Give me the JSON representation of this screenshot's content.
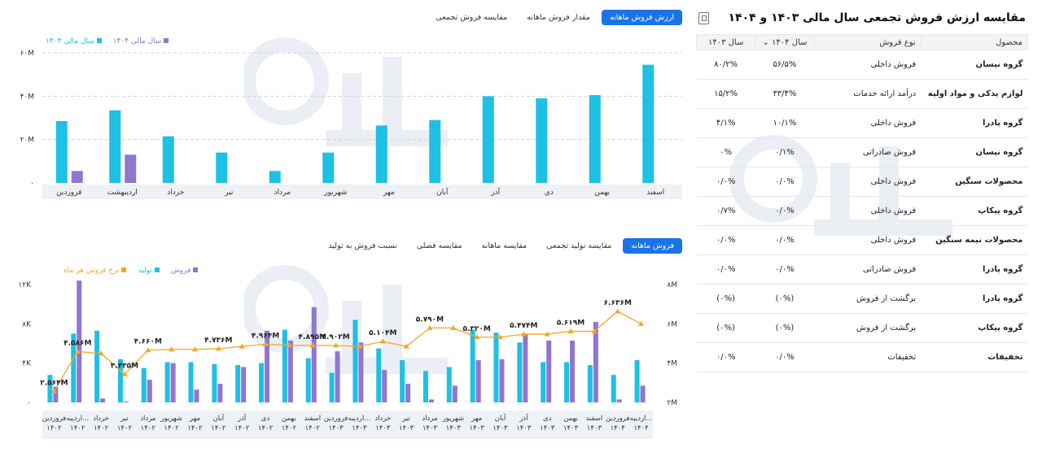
{
  "colors": {
    "accent": "#1a73e8",
    "teal": "#1ec0e4",
    "purple": "#9176d0",
    "orange": "#f5a623"
  },
  "right": {
    "title": "مقایسه ارزش فروش تجمعی سال مالی ۱۴۰۳ و ۱۴۰۴",
    "export_icon": "export-icon",
    "columns": [
      "محصول",
      "نوع فروش",
      "سال ۱۴۰۴",
      "سال ۱۴۰۳"
    ],
    "rows": [
      {
        "product": "گروه نیسان",
        "type": "فروش داخلی",
        "y1404": "۵۶/۵%",
        "y1403": "۸۰/۲%"
      },
      {
        "product": "لوازم یدکی و مواد اولیه",
        "type": "درآمد ارائه خدمات",
        "y1404": "۳۳/۴%",
        "y1403": "۱۵/۲%"
      },
      {
        "product": "گروه پادرا",
        "type": "فروش داخلی",
        "y1404": "۱۰/۱%",
        "y1403": "۴/۱%"
      },
      {
        "product": "گروه نیسان",
        "type": "فروش صادراتی",
        "y1404": "۰/۱%",
        "y1403": "۰%"
      },
      {
        "product": "محصولات سنگین",
        "type": "فروش داخلی",
        "y1404": "۰/۰%",
        "y1403": "۰/۰%"
      },
      {
        "product": "گروه پیکاپ",
        "type": "فروش داخلی",
        "y1404": "۰/۰%",
        "y1403": "۰/۷%"
      },
      {
        "product": "محصولات نیمه سنگین",
        "type": "فروش داخلی",
        "y1404": "۰/۰%",
        "y1403": "۰/۰%"
      },
      {
        "product": "گروه پادرا",
        "type": "فروش صادراتی",
        "y1404": "۰/۰%",
        "y1403": "۰/۰%"
      },
      {
        "product": "گروه پادرا",
        "type": "برگشت از فروش",
        "y1404": "(۰%)",
        "y1403": "(۰%)"
      },
      {
        "product": "گروه پیکاپ",
        "type": "برگشت از فروش",
        "y1404": "(۰%)",
        "y1403": "(۰%)"
      },
      {
        "product": "تخفیفات",
        "type": "تخفیفات",
        "y1404": "۰/۰%",
        "y1403": "۰/۰%"
      }
    ]
  },
  "top": {
    "tabs": [
      "ارزش فروش ماهانه",
      "مقدار فروش ماهانه",
      "مقایسه فروش تجمعی"
    ],
    "active_tab": 0,
    "legend": [
      "سال مالی ۱۴۰۴",
      "سال مالی ۱۴۰۳"
    ]
  },
  "bottom": {
    "tabs": [
      "فروش ماهانه",
      "مقایسه تولید تجمعی",
      "مقایسه ماهانه",
      "مقایسه فصلی",
      "نسبت فروش به تولید"
    ],
    "active_tab": 0,
    "legend": [
      "فروش",
      "تولید",
      "نرخ فروش هر ماه"
    ]
  },
  "chart_data": [
    {
      "type": "bar",
      "categories": [
        "فروردین",
        "اردیبهشت",
        "خرداد",
        "تیر",
        "مرداد",
        "شهریور",
        "مهر",
        "آبان",
        "آذر",
        "دی",
        "بهمن",
        "اسفند"
      ],
      "series": [
        {
          "name": "سال مالی ۱۴۰۳",
          "values": [
            28.5,
            33.5,
            21.5,
            14,
            5.5,
            14,
            26.5,
            29,
            40,
            39,
            40.5,
            54.5
          ]
        },
        {
          "name": "سال مالی ۱۴۰۴",
          "values": [
            5.5,
            13,
            null,
            null,
            null,
            null,
            null,
            null,
            null,
            null,
            null,
            null
          ]
        }
      ],
      "yticks": [
        "۶۰M",
        "۴۰M",
        "۲۰M",
        "۰"
      ],
      "ylim": [
        0,
        60
      ],
      "legend_position": "top-left"
    },
    {
      "type": "bar+line",
      "categories": [
        [
          "فروردین",
          "۱۴۰۲"
        ],
        [
          "اردیبه...",
          "۱۴۰۲"
        ],
        [
          "خرداد",
          "۱۴۰۲"
        ],
        [
          "تیر",
          "۱۴۰۲"
        ],
        [
          "مرداد",
          "۱۴۰۲"
        ],
        [
          "شهریور",
          "۱۴۰۲"
        ],
        [
          "مهر",
          "۱۴۰۲"
        ],
        [
          "آبان",
          "۱۴۰۲"
        ],
        [
          "آذر",
          "۱۴۰۲"
        ],
        [
          "دی",
          "۱۴۰۲"
        ],
        [
          "بهمن",
          "۱۴۰۲"
        ],
        [
          "اسفند",
          "۱۴۰۲"
        ],
        [
          "فروردین",
          "۱۴۰۳"
        ],
        [
          "اردیبه...",
          "۱۴۰۳"
        ],
        [
          "خرداد",
          "۱۴۰۳"
        ],
        [
          "تیر",
          "۱۴۰۳"
        ],
        [
          "مرداد",
          "۱۴۰۳"
        ],
        [
          "شهریور",
          "۱۴۰۳"
        ],
        [
          "مهر",
          "۱۴۰۳"
        ],
        [
          "آبان",
          "۱۴۰۳"
        ],
        [
          "آذر",
          "۱۴۰۳"
        ],
        [
          "دی",
          "۱۴۰۳"
        ],
        [
          "بهمن",
          "۱۴۰۳"
        ],
        [
          "اسفند",
          "۱۴۰۳"
        ],
        [
          "فروردین",
          "۱۴۰۴"
        ],
        [
          "اردیبه...",
          "۱۴۰۴"
        ]
      ],
      "series": [
        {
          "name": "تولید",
          "axis": "left",
          "values": [
            2.8,
            7.0,
            7.3,
            4.4,
            3.5,
            4.1,
            4.1,
            3.9,
            3.8,
            4.0,
            7.4,
            4.5,
            3.0,
            8.4,
            5.5,
            4.3,
            3.2,
            3.6,
            7.4,
            7.1,
            6.1,
            4.1,
            4.1,
            3.8,
            2.8,
            4.3
          ]
        },
        {
          "name": "فروش",
          "axis": "left",
          "values": [
            1.6,
            12.4,
            0.4,
            0.1,
            2.3,
            4.0,
            1.3,
            1.9,
            3.6,
            7.3,
            6.3,
            9.7,
            5.2,
            6.1,
            3.3,
            1.9,
            0.3,
            1.7,
            4.3,
            4.4,
            6.9,
            6.3,
            6.3,
            8.2,
            0.3,
            1.7
          ]
        },
        {
          "name": "نرخ فروش هر ماه",
          "axis": "right",
          "values": [
            2.56,
            4.586,
            4.5,
            3.435,
            4.66,
            4.7,
            4.7,
            4.736,
            4.85,
            4.964,
            4.9,
            4.895,
            4.902,
            4.85,
            5.104,
            4.85,
            5.79,
            5.79,
            5.32,
            5.32,
            5.474,
            5.474,
            5.619,
            5.619,
            6.636,
            6.0
          ]
        }
      ],
      "data_labels": [
        {
          "index": 0,
          "text": "۲.۵۶۴M"
        },
        {
          "index": 1,
          "text": "۴.۵۸۶M"
        },
        {
          "index": 3,
          "text": "۳.۴۳۵M"
        },
        {
          "index": 4,
          "text": "۴.۶۶۰M"
        },
        {
          "index": 7,
          "text": "۴.۷۳۶M"
        },
        {
          "index": 9,
          "text": "۴.۹۶۴M"
        },
        {
          "index": 11,
          "text": "۴.۸۹۵M"
        },
        {
          "index": 12,
          "text": "۴.۹۰۲M"
        },
        {
          "index": 14,
          "text": "۵.۱۰۴M"
        },
        {
          "index": 16,
          "text": "۵.۷۹۰M"
        },
        {
          "index": 18,
          "text": "۵.۳۲۰M"
        },
        {
          "index": 20,
          "text": "۵.۴۷۴M"
        },
        {
          "index": 22,
          "text": "۵.۶۱۹M"
        },
        {
          "index": 24,
          "text": "۶.۶۳۶M"
        }
      ],
      "yticks_left": [
        "۱۲K",
        "۸K",
        "۴K",
        "۰"
      ],
      "ylim_left": [
        0,
        12
      ],
      "yticks_right": [
        "۸M",
        "۶M",
        "۴M",
        "۲M"
      ],
      "ylim_right": [
        2,
        8
      ]
    }
  ]
}
